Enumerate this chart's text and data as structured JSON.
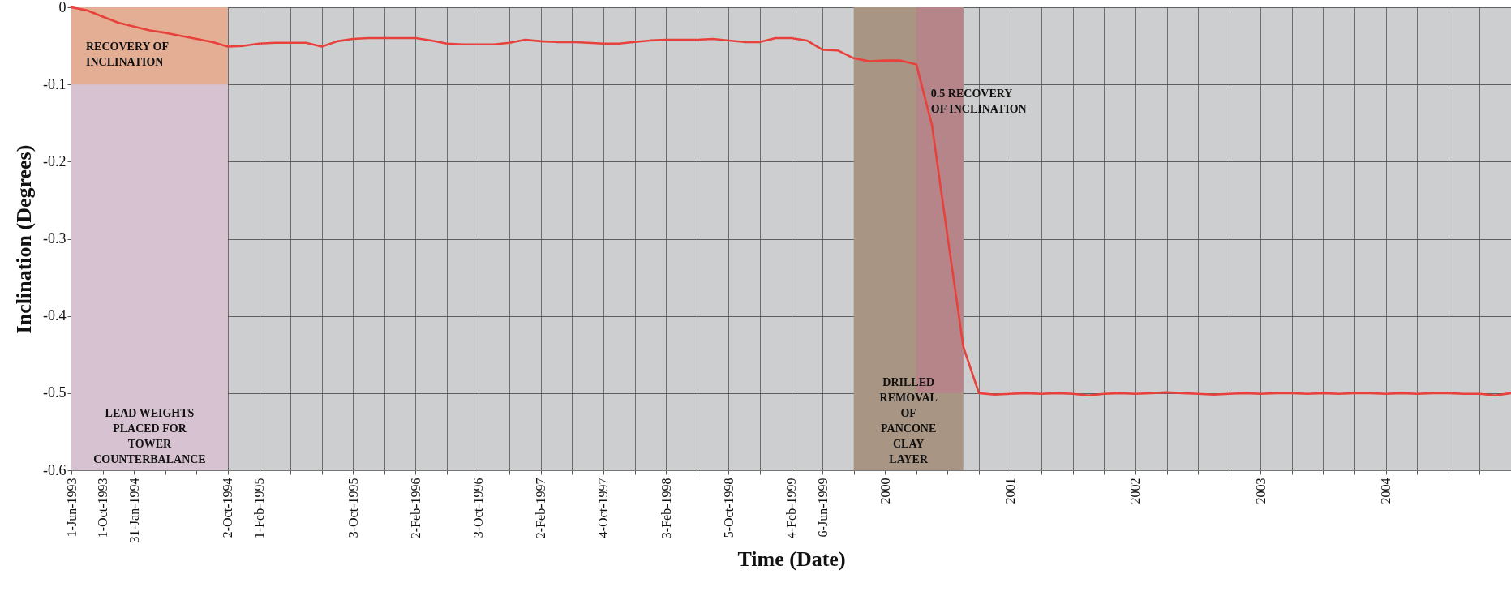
{
  "chart_data": {
    "type": "line",
    "xlabel": "Time (Date)",
    "ylabel": "Inclination (Degrees)",
    "categories": [
      "1-Jun-1993",
      null,
      "1-Oct-1993",
      null,
      "31-Jan-1994",
      null,
      null,
      null,
      null,
      null,
      "2-Oct-1994",
      null,
      "1-Feb-1995",
      null,
      null,
      null,
      null,
      null,
      "3-Oct-1995",
      null,
      null,
      null,
      "2-Feb-1996",
      null,
      null,
      null,
      "3-Oct-1996",
      null,
      null,
      null,
      "2-Feb-1997",
      null,
      null,
      null,
      "4-Oct-1997",
      null,
      null,
      null,
      "3-Feb-1998",
      null,
      null,
      null,
      "5-Oct-1998",
      null,
      null,
      null,
      "4-Feb-1999",
      null,
      "6-Jun-1999",
      null,
      null,
      null,
      "2000",
      null,
      null,
      null,
      null,
      null,
      null,
      null,
      "2001",
      null,
      null,
      null,
      null,
      null,
      null,
      null,
      "2002",
      null,
      null,
      null,
      null,
      null,
      null,
      null,
      "2003",
      null,
      null,
      null,
      null,
      null,
      null,
      null,
      "2004",
      null,
      null,
      null,
      null,
      null,
      null,
      null,
      null
    ],
    "series": [
      {
        "type": "area",
        "name": "LEAD WEIGHTS\nPLACED FOR\nTOWER\nCOUNTERBALANCE",
        "color": "#d6c2d0",
        "values": [
          -0.6,
          -0.6,
          -0.6,
          -0.6,
          -0.6,
          -0.6,
          -0.6,
          -0.6,
          -0.6,
          -0.6,
          -0.6,
          null,
          null,
          null,
          null,
          null,
          null,
          null,
          null,
          null,
          null,
          null,
          null,
          null,
          null,
          null,
          null,
          null,
          null,
          null,
          null,
          null,
          null,
          null,
          null,
          null,
          null,
          null,
          null,
          null,
          null,
          null,
          null,
          null,
          null,
          null,
          null,
          null,
          null,
          null,
          null,
          null,
          null,
          null,
          null,
          null,
          null,
          null,
          null,
          null,
          null,
          null,
          null,
          null,
          null,
          null,
          null,
          null,
          null,
          null,
          null,
          null,
          null,
          null,
          null,
          null,
          null,
          null,
          null,
          null,
          null,
          null,
          null,
          null,
          null,
          null,
          null,
          null,
          null,
          null,
          null,
          null,
          null
        ]
      },
      {
        "type": "area",
        "name": "RECOVERY OF\nINCLINATION",
        "color": "#e3ae93",
        "values": [
          -0.1,
          -0.1,
          -0.1,
          -0.1,
          -0.1,
          -0.1,
          -0.1,
          -0.1,
          -0.1,
          -0.1,
          -0.1,
          null,
          null,
          null,
          null,
          null,
          null,
          null,
          null,
          null,
          null,
          null,
          null,
          null,
          null,
          null,
          null,
          null,
          null,
          null,
          null,
          null,
          null,
          null,
          null,
          null,
          null,
          null,
          null,
          null,
          null,
          null,
          null,
          null,
          null,
          null,
          null,
          null,
          null,
          null,
          null,
          null,
          null,
          null,
          null,
          null,
          null,
          null,
          null,
          null,
          null,
          null,
          null,
          null,
          null,
          null,
          null,
          null,
          null,
          null,
          null,
          null,
          null,
          null,
          null,
          null,
          null,
          null,
          null,
          null,
          null,
          null,
          null,
          null,
          null,
          null,
          null,
          null,
          null,
          null,
          null,
          null,
          null
        ]
      },
      {
        "type": "area",
        "name": "DRILLED\nREMOVAL\nOF\nPANCONE\nCLAY\nLAYER",
        "color": "#a99583",
        "values": [
          null,
          null,
          null,
          null,
          null,
          null,
          null,
          null,
          null,
          null,
          null,
          null,
          null,
          null,
          null,
          null,
          null,
          null,
          null,
          null,
          null,
          null,
          null,
          null,
          null,
          null,
          null,
          null,
          null,
          null,
          null,
          null,
          null,
          null,
          null,
          null,
          null,
          null,
          null,
          null,
          null,
          null,
          null,
          null,
          null,
          null,
          null,
          null,
          null,
          null,
          -0.6,
          -0.6,
          -0.6,
          -0.6,
          -0.6,
          -0.6,
          -0.6,
          -0.6,
          null,
          null,
          null,
          null,
          null,
          null,
          null,
          null,
          null,
          null,
          null,
          null,
          null,
          null,
          null,
          null,
          null,
          null,
          null,
          null,
          null,
          null,
          null,
          null,
          null,
          null,
          null,
          null,
          null,
          null,
          null,
          null,
          null,
          null,
          null
        ]
      },
      {
        "type": "area",
        "name": "0.5 RECOVERY\nOF INCLINATION",
        "color": "#b5858a",
        "values": [
          null,
          null,
          null,
          null,
          null,
          null,
          null,
          null,
          null,
          null,
          null,
          null,
          null,
          null,
          null,
          null,
          null,
          null,
          null,
          null,
          null,
          null,
          null,
          null,
          null,
          null,
          null,
          null,
          null,
          null,
          null,
          null,
          null,
          null,
          null,
          null,
          null,
          null,
          null,
          null,
          null,
          null,
          null,
          null,
          null,
          null,
          null,
          null,
          null,
          null,
          null,
          null,
          null,
          null,
          -0.5,
          -0.5,
          -0.5,
          -0.5,
          null,
          null,
          null,
          null,
          null,
          null,
          null,
          null,
          null,
          null,
          null,
          null,
          null,
          null,
          null,
          null,
          null,
          null,
          null,
          null,
          null,
          null,
          null,
          null,
          null,
          null,
          null,
          null,
          null,
          null,
          null,
          null,
          null,
          null,
          null
        ]
      },
      {
        "color": "#e8413c",
        "values": [
          0,
          -0.004,
          -0.012,
          -0.02,
          -0.025,
          -0.03,
          -0.033,
          -0.037,
          -0.041,
          -0.045,
          -0.051,
          -0.05,
          -0.047,
          -0.046,
          -0.046,
          -0.046,
          -0.051,
          -0.044,
          -0.041,
          -0.04,
          -0.04,
          -0.04,
          -0.04,
          -0.043,
          -0.047,
          -0.048,
          -0.048,
          -0.048,
          -0.046,
          -0.042,
          -0.044,
          -0.045,
          -0.045,
          -0.046,
          -0.047,
          -0.047,
          -0.045,
          -0.043,
          -0.042,
          -0.042,
          -0.042,
          -0.041,
          -0.043,
          -0.045,
          -0.045,
          -0.04,
          -0.04,
          -0.043,
          -0.055,
          -0.056,
          -0.066,
          -0.07,
          -0.069,
          -0.069,
          -0.074,
          -0.153,
          -0.298,
          -0.44,
          -0.5,
          -0.502,
          -0.501,
          -0.5,
          -0.501,
          -0.5,
          -0.501,
          -0.503,
          -0.501,
          -0.5,
          -0.501,
          -0.5,
          -0.499,
          -0.5,
          -0.501,
          -0.502,
          -0.501,
          -0.5,
          -0.501,
          -0.5,
          -0.5,
          -0.501,
          -0.5,
          -0.501,
          -0.5,
          -0.5,
          -0.501,
          -0.5,
          -0.501,
          -0.5,
          -0.5,
          -0.501,
          -0.501,
          -0.503,
          -0.5
        ]
      }
    ],
    "ylim": [
      -0.6,
      0
    ],
    "yticks": [
      0,
      -0.1,
      -0.2,
      -0.3,
      -0.4,
      -0.5,
      -0.6
    ],
    "grid": true,
    "line_style": "solid"
  }
}
